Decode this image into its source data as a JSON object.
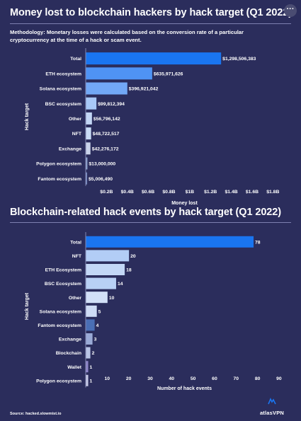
{
  "menu_label": "···",
  "chart_data": [
    {
      "type": "bar",
      "orientation": "horizontal",
      "title": "Money lost to blockchain hackers by hack target (Q1 2022)",
      "subtitle": "Methodology: Monetary losses were calculated based on the conversion rate of a particular cryptocurrency at the time of a hack or scam event.",
      "xlabel": "Money lost",
      "ylabel": "Hack target",
      "xlim": [
        0,
        1900000000
      ],
      "x_ticks": [
        200000000,
        400000000,
        600000000,
        800000000,
        1000000000,
        1200000000,
        1400000000,
        1600000000,
        1800000000
      ],
      "x_tick_labels": [
        "$0.2B",
        "$0.4B",
        "$0.6B",
        "$0.8B",
        "$1B",
        "$1.2B",
        "$1.4B",
        "$1.6B",
        "$1.8B"
      ],
      "categories": [
        "Total",
        "ETH ecosystem",
        "Solana ecosystem",
        "BSC ecosystem",
        "Other",
        "NFT",
        "Exchange",
        "Polygon ecosystem",
        "Fantom ecosystem"
      ],
      "values": [
        1298506383,
        635971626,
        396921042,
        99812394,
        56796142,
        48722517,
        42276172,
        13000000,
        5006490
      ],
      "value_labels": [
        "$1,298,506,383",
        "$635,971,626",
        "$396,921,042",
        "$99,812,394",
        "$56,796,142",
        "$48,722,517",
        "$42,276,172",
        "$13,000,000",
        "$5,006,490"
      ],
      "colors": [
        "#1a75f0",
        "#4f93f4",
        "#72a8f6",
        "#a8c8f7",
        "#c3d6f5",
        "#c9dbf6",
        "#c9d3ea",
        "#8ea3cf",
        "#7b8dc3"
      ],
      "grid": false,
      "legend": "none"
    },
    {
      "type": "bar",
      "orientation": "horizontal",
      "title": "Blockchain-related hack events by hack target (Q1 2022)",
      "xlabel": "Number of hack events",
      "ylabel": "Hack target",
      "xlim": [
        0,
        92
      ],
      "x_ticks": [
        10,
        20,
        30,
        40,
        50,
        60,
        70,
        80,
        90
      ],
      "x_tick_labels": [
        "10",
        "20",
        "30",
        "40",
        "50",
        "60",
        "70",
        "80",
        "90"
      ],
      "categories": [
        "Total",
        "NFT",
        "ETH Ecosystem",
        "BSC Ecosystem",
        "Other",
        "Solana ecosystem",
        "Fantom ecosystem",
        "Exchange",
        "Blockchain",
        "Wallet",
        "Polygon ecosystem"
      ],
      "values": [
        78,
        20,
        18,
        14,
        10,
        5,
        4,
        3,
        2,
        1,
        1
      ],
      "value_labels": [
        "78",
        "20",
        "18",
        "14",
        "10",
        "5",
        "4",
        "3",
        "2",
        "1",
        "1"
      ],
      "colors": [
        "#1a75f0",
        "#b2cdf6",
        "#c3d7f6",
        "#b8d0f4",
        "#d2e0f7",
        "#cfdcf5",
        "#4a6fb5",
        "#9aaad6",
        "#b9c4e6",
        "#8e86c9",
        "#c6c9e6"
      ],
      "grid": false,
      "legend": "none"
    }
  ],
  "source": "Source: hacked.slowmist.io",
  "brand": "atlasVPN"
}
